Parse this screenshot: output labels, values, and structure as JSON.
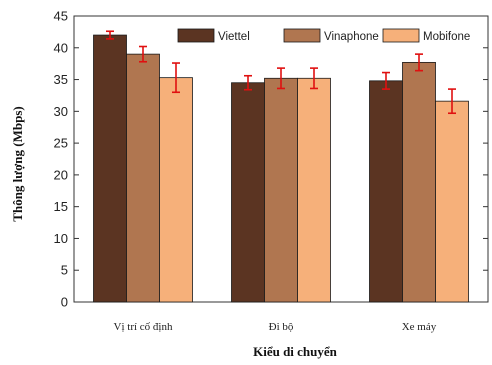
{
  "chart_data": {
    "type": "bar",
    "xlabel": "Kiểu di chuyển",
    "ylabel": "Thông lượng (Mbps)",
    "ylim": [
      0,
      45
    ],
    "yticks": [
      0,
      5,
      10,
      15,
      20,
      25,
      30,
      35,
      40,
      45
    ],
    "categories": [
      "Vị trí cố định",
      "Đi bộ",
      "Xe máy"
    ],
    "legend_position": "top-right",
    "grid": false,
    "series": [
      {
        "name": "Viettel",
        "color": "#5b3422",
        "values": [
          42.0,
          34.5,
          34.8
        ],
        "error": [
          0.6,
          1.1,
          1.3
        ]
      },
      {
        "name": "Vinaphone",
        "color": "#b07650",
        "values": [
          39.0,
          35.2,
          37.7
        ],
        "error": [
          1.2,
          1.6,
          1.3
        ]
      },
      {
        "name": "Mobifone",
        "color": "#f6b07a",
        "values": [
          35.3,
          35.2,
          31.6
        ],
        "error": [
          2.3,
          1.6,
          1.9
        ]
      }
    ],
    "error_color": "#e01010"
  }
}
